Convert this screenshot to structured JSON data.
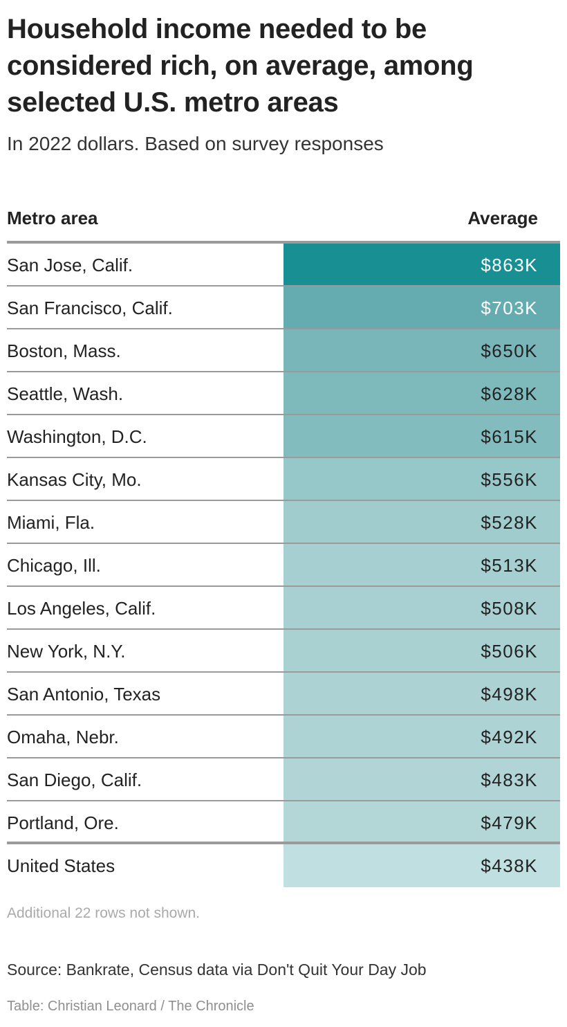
{
  "header": {
    "title": "Household income needed to be considered rich, on average, among selected U.S. metro areas",
    "subtitle": "In 2022 dollars. Based on survey responses"
  },
  "table": {
    "columns": [
      "Metro area",
      "Average"
    ],
    "rows": [
      {
        "metro": "San Jose, Calif.",
        "value": "$863K",
        "bg": "#188f93",
        "fg": "#ffffff"
      },
      {
        "metro": "San Francisco, Calif.",
        "value": "$703K",
        "bg": "#65acb0",
        "fg": "#ffffff"
      },
      {
        "metro": "Boston, Mass.",
        "value": "$650K",
        "bg": "#79b6b9",
        "fg": "#222222"
      },
      {
        "metro": "Seattle, Wash.",
        "value": "$628K",
        "bg": "#7ebabc",
        "fg": "#222222"
      },
      {
        "metro": "Washington, D.C.",
        "value": "$615K",
        "bg": "#83bcbe",
        "fg": "#222222"
      },
      {
        "metro": "Kansas City, Mo.",
        "value": "$556K",
        "bg": "#96c7c9",
        "fg": "#222222"
      },
      {
        "metro": "Miami, Fla.",
        "value": "$528K",
        "bg": "#a0cccd",
        "fg": "#222222"
      },
      {
        "metro": "Chicago, Ill.",
        "value": "$513K",
        "bg": "#a6cfd1",
        "fg": "#222222"
      },
      {
        "metro": "Los Angeles, Calif.",
        "value": "$508K",
        "bg": "#a8d0d2",
        "fg": "#222222"
      },
      {
        "metro": "New York, N.Y.",
        "value": "$506K",
        "bg": "#a9d1d2",
        "fg": "#222222"
      },
      {
        "metro": "San Antonio, Texas",
        "value": "$498K",
        "bg": "#acd2d4",
        "fg": "#222222"
      },
      {
        "metro": "Omaha, Nebr.",
        "value": "$492K",
        "bg": "#aed3d5",
        "fg": "#222222"
      },
      {
        "metro": "San Diego, Calif.",
        "value": "$483K",
        "bg": "#b1d5d6",
        "fg": "#222222"
      },
      {
        "metro": "Portland, Ore.",
        "value": "$479K",
        "bg": "#b3d6d7",
        "fg": "#222222"
      }
    ],
    "total": {
      "metro": "United States",
      "value": "$438K",
      "bg": "#c0dfe0",
      "fg": "#222222"
    }
  },
  "footer": {
    "note": "Additional 22 rows not shown.",
    "source": "Source: Bankrate, Census data via Don't Quit Your Day Job",
    "credit": "Table: Christian Leonard / The Chronicle"
  },
  "chart_data": {
    "type": "table",
    "title": "Household income needed to be considered rich, on average, among selected U.S. metro areas",
    "subtitle": "In 2022 dollars. Based on survey responses",
    "columns": [
      "Metro area",
      "Average"
    ],
    "categories": [
      "San Jose, Calif.",
      "San Francisco, Calif.",
      "Boston, Mass.",
      "Seattle, Wash.",
      "Washington, D.C.",
      "Kansas City, Mo.",
      "Miami, Fla.",
      "Chicago, Ill.",
      "Los Angeles, Calif.",
      "New York, N.Y.",
      "San Antonio, Texas",
      "Omaha, Nebr.",
      "San Diego, Calif.",
      "Portland, Ore.",
      "United States"
    ],
    "values": [
      863,
      703,
      650,
      628,
      615,
      556,
      528,
      513,
      508,
      506,
      498,
      492,
      483,
      479,
      438
    ],
    "unit": "thousand USD",
    "notes": "Additional 22 rows not shown.",
    "source": "Source: Bankrate, Census data via Don't Quit Your Day Job"
  }
}
